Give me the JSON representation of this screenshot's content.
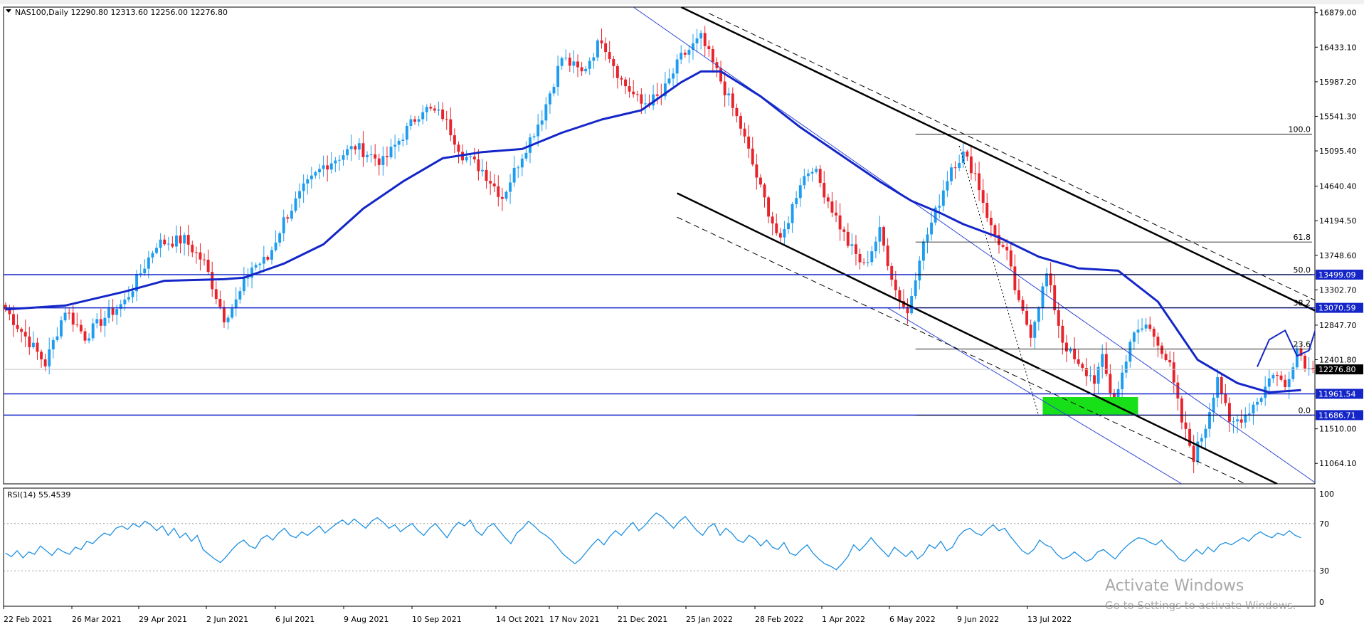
{
  "main_header": {
    "symbol_info": "NAS100,Daily  12290.80 12313.60 12256.00 12276.80"
  },
  "rsi_header": {
    "label": "RSI(14) 55.4539"
  },
  "watermark": {
    "title": "Activate Windows",
    "subtitle": "Go to Settings to activate Windows."
  },
  "colors": {
    "bull": "#1e9df0",
    "bear": "#e8232b",
    "ma": "#1426c8",
    "level_line": "#1426c8",
    "channel": "#000000",
    "thin_channel": "#2a44d6",
    "fib_line": "#000000",
    "rsi_line": "#1e90e0",
    "support_zone": "#18e018",
    "price_tag_bg": "#1426c8",
    "current_tag_bg": "#000000"
  },
  "chart_data": [
    {
      "type": "candlestick",
      "title": "",
      "ylim": [
        10800,
        16950
      ],
      "y_ticks": [
        16879.0,
        16433.1,
        15987.2,
        15541.3,
        15095.4,
        14640.4,
        14194.5,
        13748.6,
        13302.7,
        12847.7,
        12401.8,
        11510.0,
        11064.1
      ],
      "x_tick_labels": [
        "22 Feb 2021",
        "26 Mar 2021",
        "29 Apr 2021",
        "2 Jun 2021",
        "6 Jul 2021",
        "9 Aug 2021",
        "10 Sep 2021",
        "14 Oct 2021",
        "17 Nov 2021",
        "21 Dec 2021",
        "25 Jan 2022",
        "28 Feb 2022",
        "1 Apr 2022",
        "6 May 2022",
        "9 Jun 2022",
        "13 Jul 2022"
      ],
      "price_waypoints": [
        [
          0,
          13050
        ],
        [
          5,
          12700
        ],
        [
          10,
          12350
        ],
        [
          15,
          13050
        ],
        [
          20,
          12700
        ],
        [
          25,
          12950
        ],
        [
          30,
          13150
        ],
        [
          38,
          13900
        ],
        [
          45,
          13950
        ],
        [
          50,
          13650
        ],
        [
          55,
          12950
        ],
        [
          58,
          13150
        ],
        [
          62,
          13600
        ],
        [
          66,
          13700
        ],
        [
          70,
          14200
        ],
        [
          75,
          14600
        ],
        [
          80,
          14900
        ],
        [
          88,
          15150
        ],
        [
          95,
          14950
        ],
        [
          100,
          15300
        ],
        [
          105,
          15650
        ],
        [
          110,
          15550
        ],
        [
          115,
          15050
        ],
        [
          120,
          14850
        ],
        [
          125,
          14500
        ],
        [
          130,
          15050
        ],
        [
          135,
          15550
        ],
        [
          140,
          16300
        ],
        [
          145,
          16100
        ],
        [
          150,
          16550
        ],
        [
          155,
          16000
        ],
        [
          160,
          15700
        ],
        [
          165,
          15800
        ],
        [
          170,
          16300
        ],
        [
          175,
          16550
        ],
        [
          180,
          16000
        ],
        [
          185,
          15400
        ],
        [
          190,
          14600
        ],
        [
          195,
          13900
        ],
        [
          200,
          14700
        ],
        [
          203,
          14900
        ],
        [
          208,
          14350
        ],
        [
          212,
          13900
        ],
        [
          216,
          13600
        ],
        [
          220,
          14050
        ],
        [
          224,
          13300
        ],
        [
          227,
          13000
        ],
        [
          230,
          13750
        ],
        [
          234,
          14300
        ],
        [
          238,
          14900
        ],
        [
          241,
          15050
        ],
        [
          244,
          14800
        ],
        [
          248,
          14100
        ],
        [
          252,
          13750
        ],
        [
          255,
          13100
        ],
        [
          258,
          12750
        ],
        [
          262,
          13500
        ],
        [
          266,
          12650
        ],
        [
          270,
          12300
        ],
        [
          274,
          12150
        ],
        [
          276,
          12400
        ],
        [
          279,
          11800
        ],
        [
          283,
          12650
        ],
        [
          287,
          12850
        ],
        [
          290,
          12650
        ],
        [
          293,
          12300
        ],
        [
          296,
          11600
        ],
        [
          299,
          11150
        ],
        [
          302,
          11550
        ],
        [
          305,
          12200
        ],
        [
          308,
          11550
        ],
        [
          312,
          11700
        ],
        [
          316,
          11950
        ],
        [
          319,
          12250
        ],
        [
          322,
          12050
        ],
        [
          325,
          12550
        ],
        [
          328,
          12276
        ]
      ],
      "moving_average": {
        "name": "",
        "points": [
          [
            0,
            13050
          ],
          [
            15,
            13100
          ],
          [
            30,
            13280
          ],
          [
            40,
            13420
          ],
          [
            55,
            13440
          ],
          [
            60,
            13460
          ],
          [
            70,
            13640
          ],
          [
            80,
            13890
          ],
          [
            90,
            14350
          ],
          [
            100,
            14700
          ],
          [
            110,
            15000
          ],
          [
            120,
            15080
          ],
          [
            130,
            15120
          ],
          [
            140,
            15330
          ],
          [
            150,
            15500
          ],
          [
            160,
            15620
          ],
          [
            170,
            15980
          ],
          [
            175,
            16120
          ],
          [
            180,
            16120
          ],
          [
            190,
            15800
          ],
          [
            200,
            15400
          ],
          [
            210,
            15050
          ],
          [
            220,
            14700
          ],
          [
            228,
            14450
          ],
          [
            235,
            14300
          ],
          [
            241,
            14150
          ],
          [
            250,
            13980
          ],
          [
            260,
            13730
          ],
          [
            270,
            13580
          ],
          [
            280,
            13550
          ],
          [
            290,
            13150
          ],
          [
            300,
            12400
          ],
          [
            310,
            12100
          ],
          [
            318,
            11980
          ],
          [
            326,
            12010
          ]
        ]
      },
      "horizontal_levels": [
        {
          "price": 13499.09,
          "label": "13499.09"
        },
        {
          "price": 13070.59,
          "label": "13070.59"
        },
        {
          "price": 11961.54,
          "label": "11961.54"
        },
        {
          "price": 11686.71,
          "label": "11686.71"
        }
      ],
      "current_price": {
        "price": 12276.8,
        "label": "12276.80"
      },
      "fibonacci": {
        "levels": [
          {
            "ratio": "100.0",
            "price": 15311
          },
          {
            "ratio": "61.8",
            "price": 13920
          },
          {
            "ratio": "50.0",
            "price": 13499.09
          },
          {
            "ratio": "38.2",
            "price": 13070.59
          },
          {
            "ratio": "23.6",
            "price": 12540
          },
          {
            "ratio": "0.0",
            "price": 11686.71
          }
        ]
      },
      "channel_lines": [
        {
          "style": "solid",
          "from": [
            170,
            16950
          ],
          "to": [
            388,
            11600
          ]
        },
        {
          "style": "dashed",
          "from": [
            177,
            16870
          ],
          "to": [
            388,
            11750
          ]
        },
        {
          "style": "solid",
          "from": [
            169,
            14550
          ],
          "to": [
            320,
            10800
          ]
        },
        {
          "style": "dashed",
          "from": [
            169,
            14240
          ],
          "to": [
            312,
            10800
          ]
        }
      ],
      "thin_channel_lines": [
        {
          "from": [
            158,
            16950
          ],
          "to": [
            330,
            10800
          ]
        },
        {
          "from": [
            222,
            13070
          ],
          "to": [
            296,
            10800
          ]
        }
      ],
      "dotted_line": {
        "from": [
          240,
          15160
        ],
        "to": [
          260,
          11680
        ]
      },
      "support_zone": {
        "x0": 261,
        "x1": 285,
        "price_top": 11920,
        "price_bottom": 11690
      },
      "projection_arrow": {
        "points": [
          [
            315,
            12310
          ],
          [
            318,
            12660
          ],
          [
            322,
            12780
          ],
          [
            325,
            12450
          ],
          [
            328,
            12520
          ],
          [
            330,
            12850
          ],
          [
            332,
            13000
          ],
          [
            334,
            13120
          ],
          [
            336,
            13170
          ]
        ]
      }
    },
    {
      "type": "line",
      "title": "",
      "ylim": [
        0,
        100
      ],
      "y_ticks": [
        100,
        70,
        30,
        0
      ],
      "reference_levels": [
        70,
        30
      ],
      "current_value": 55.4539,
      "values": [
        45,
        42,
        47,
        41,
        46,
        44,
        51,
        47,
        43,
        49,
        46,
        44,
        50,
        48,
        55,
        53,
        58,
        62,
        60,
        66,
        68,
        65,
        70,
        67,
        72,
        69,
        64,
        68,
        60,
        66,
        58,
        62,
        55,
        60,
        48,
        44,
        40,
        37,
        42,
        48,
        53,
        56,
        51,
        49,
        57,
        60,
        56,
        62,
        66,
        60,
        58,
        63,
        60,
        64,
        68,
        62,
        66,
        70,
        73,
        69,
        74,
        70,
        66,
        72,
        75,
        71,
        66,
        69,
        63,
        67,
        70,
        64,
        60,
        66,
        70,
        64,
        58,
        66,
        71,
        68,
        73,
        64,
        60,
        67,
        70,
        64,
        58,
        53,
        62,
        66,
        72,
        68,
        63,
        60,
        56,
        50,
        44,
        40,
        36,
        40,
        46,
        52,
        57,
        52,
        59,
        64,
        60,
        66,
        71,
        64,
        68,
        74,
        79,
        76,
        71,
        66,
        72,
        76,
        70,
        64,
        60,
        67,
        70,
        60,
        66,
        62,
        56,
        54,
        60,
        57,
        51,
        56,
        50,
        48,
        54,
        45,
        43,
        48,
        52,
        45,
        40,
        36,
        34,
        31,
        36,
        42,
        52,
        47,
        52,
        58,
        52,
        47,
        42,
        50,
        46,
        42,
        47,
        40,
        44,
        52,
        49,
        55,
        47,
        50,
        59,
        64,
        66,
        62,
        60,
        65,
        69,
        64,
        66,
        59,
        53,
        47,
        44,
        48,
        56,
        52,
        50,
        44,
        40,
        42,
        46,
        42,
        38,
        40,
        46,
        48,
        44,
        40,
        46,
        51,
        55,
        58,
        57,
        54,
        52,
        56,
        50,
        46,
        40,
        38,
        43,
        48,
        44,
        50,
        46,
        52,
        54,
        52,
        55,
        58,
        55,
        60,
        63,
        60,
        58,
        62,
        60,
        64,
        60,
        58
      ]
    }
  ]
}
